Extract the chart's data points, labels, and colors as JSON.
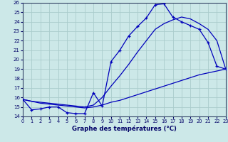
{
  "title": "Graphe des températures (°C)",
  "bg_color": "#cce8e8",
  "line_color": "#0000bb",
  "grid_color": "#aacccc",
  "xlim": [
    0,
    23
  ],
  "ylim": [
    14,
    26
  ],
  "xticks": [
    0,
    1,
    2,
    3,
    4,
    5,
    6,
    7,
    8,
    9,
    10,
    11,
    12,
    13,
    14,
    15,
    16,
    17,
    18,
    19,
    20,
    21,
    22,
    23
  ],
  "yticks": [
    14,
    15,
    16,
    17,
    18,
    19,
    20,
    21,
    22,
    23,
    24,
    25,
    26
  ],
  "hours": [
    0,
    1,
    2,
    3,
    4,
    5,
    6,
    7,
    8,
    9,
    10,
    11,
    12,
    13,
    14,
    15,
    16,
    17,
    18,
    19,
    20,
    21,
    22,
    23
  ],
  "temp_actual": [
    15.8,
    14.7,
    14.8,
    15.0,
    15.0,
    14.4,
    14.3,
    14.3,
    16.5,
    15.1,
    19.8,
    21.0,
    22.5,
    23.5,
    24.4,
    25.8,
    25.9,
    24.5,
    24.0,
    23.6,
    23.2,
    21.8,
    19.3,
    19.0
  ],
  "temp_min_line": [
    15.8,
    15.6,
    15.4,
    15.3,
    15.2,
    15.1,
    15.0,
    14.9,
    15.0,
    15.2,
    15.5,
    15.7,
    16.0,
    16.3,
    16.6,
    16.9,
    17.2,
    17.5,
    17.8,
    18.1,
    18.4,
    18.6,
    18.8,
    19.0
  ],
  "temp_max_line": [
    15.8,
    15.6,
    15.5,
    15.4,
    15.3,
    15.2,
    15.1,
    15.0,
    15.2,
    16.0,
    17.2,
    18.3,
    19.5,
    20.8,
    22.0,
    23.2,
    23.8,
    24.2,
    24.5,
    24.3,
    23.8,
    23.2,
    22.0,
    19.0
  ]
}
